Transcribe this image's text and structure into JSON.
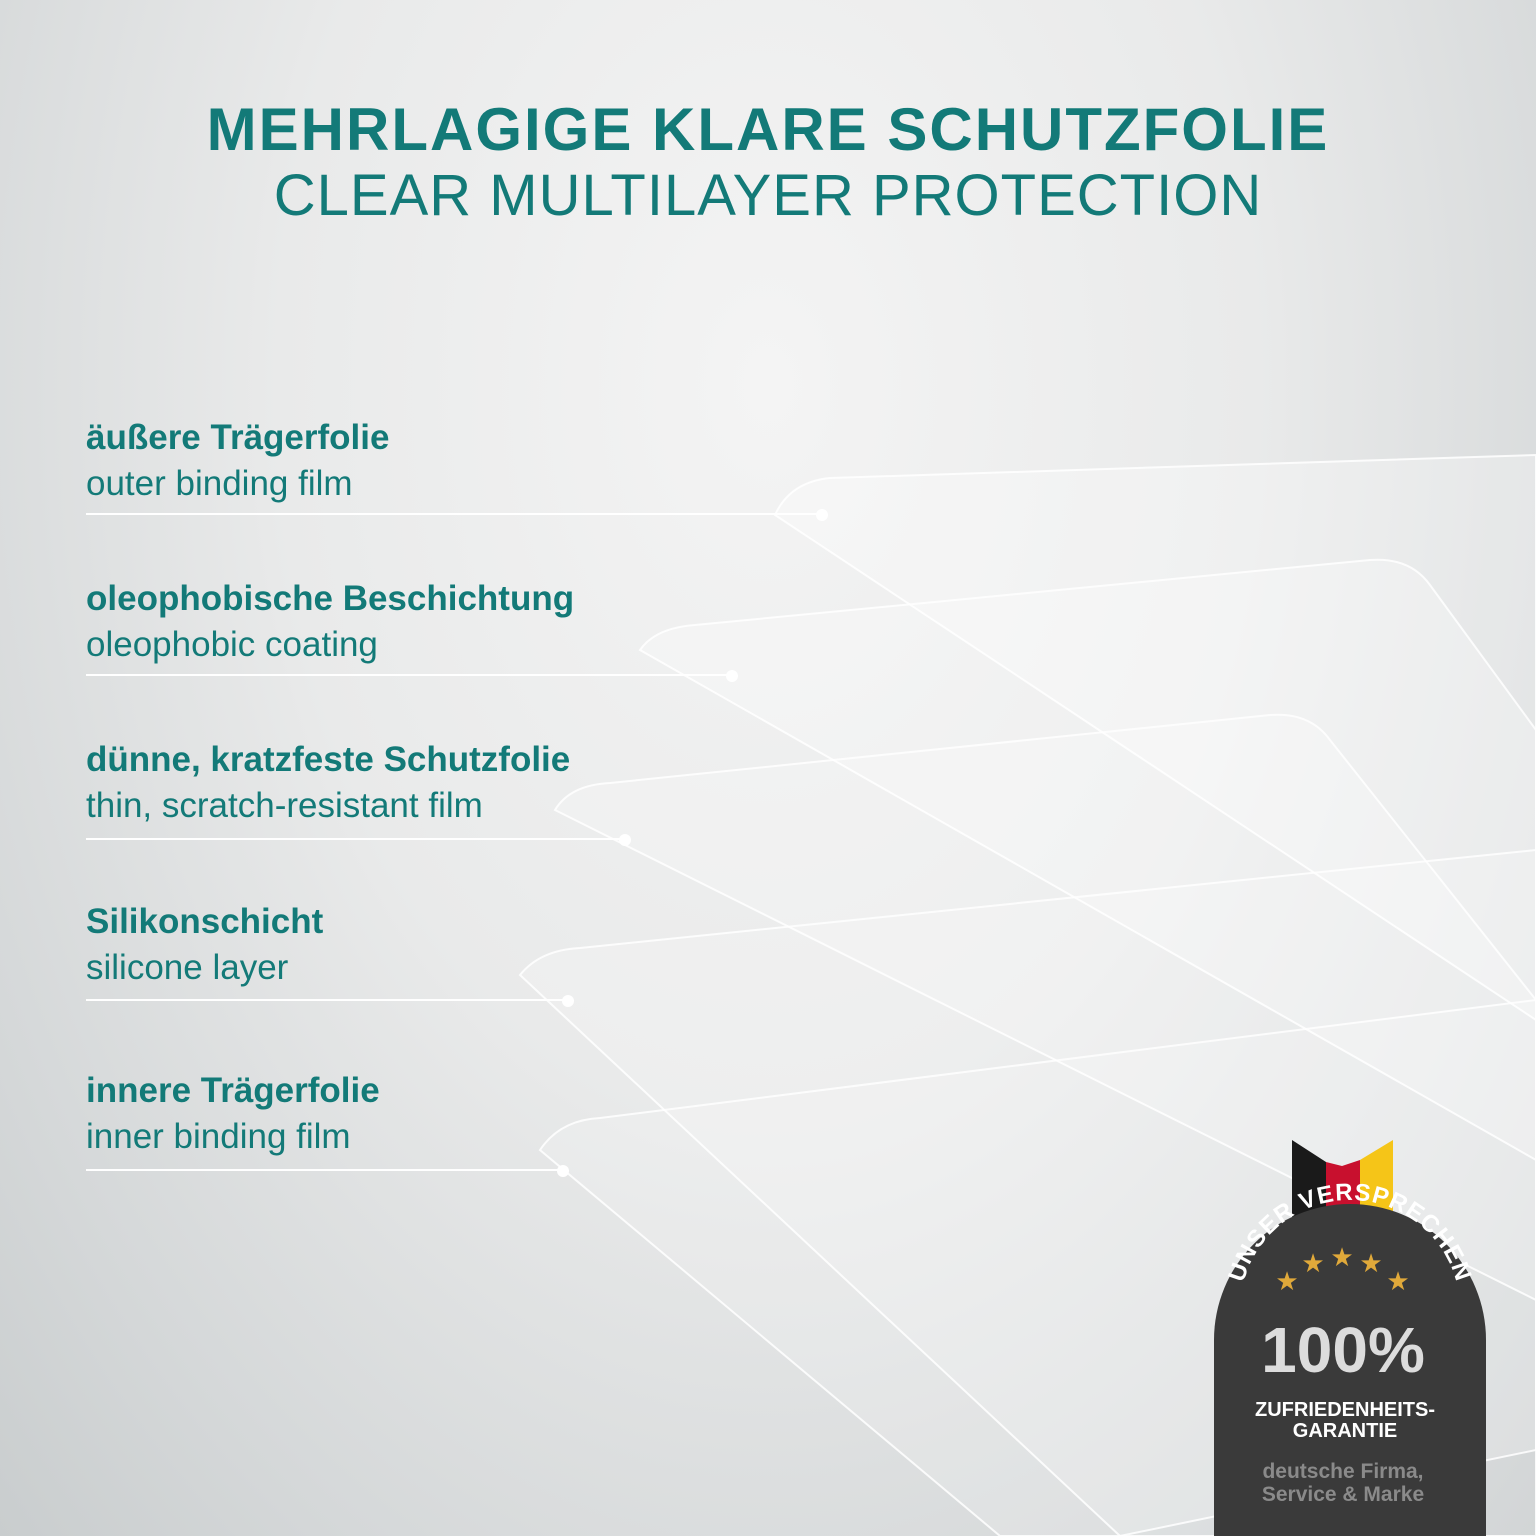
{
  "title": {
    "de": "MEHRLAGIGE KLARE SCHUTZFOLIE",
    "en": "CLEAR MULTILAYER PROTECTION"
  },
  "layers": [
    {
      "de": "äußere Trägerfolie",
      "en": "outer binding film"
    },
    {
      "de": "oleophobische Beschichtung",
      "en": "oleophobic coating"
    },
    {
      "de": "dünne, kratzfeste Schutzfolie",
      "en": "thin, scratch-resistant film"
    },
    {
      "de": "Silikonschicht",
      "en": "silicone layer"
    },
    {
      "de": "innere Trägerfolie",
      "en": "inner binding film"
    }
  ],
  "badge": {
    "arc": "UNSER VERSPRECHEN",
    "stars": 5,
    "big": "100%",
    "line1": "ZUFRIEDENHEITS-",
    "line2": "GARANTIE",
    "sub1": "deutsche Firma,",
    "sub2": "Service & Marke",
    "flag_colors": [
      "#1a1a1a",
      "#d0021b",
      "#f5c518"
    ]
  },
  "colors": {
    "accent": "#137a78",
    "badge": "#3a3a3a"
  }
}
